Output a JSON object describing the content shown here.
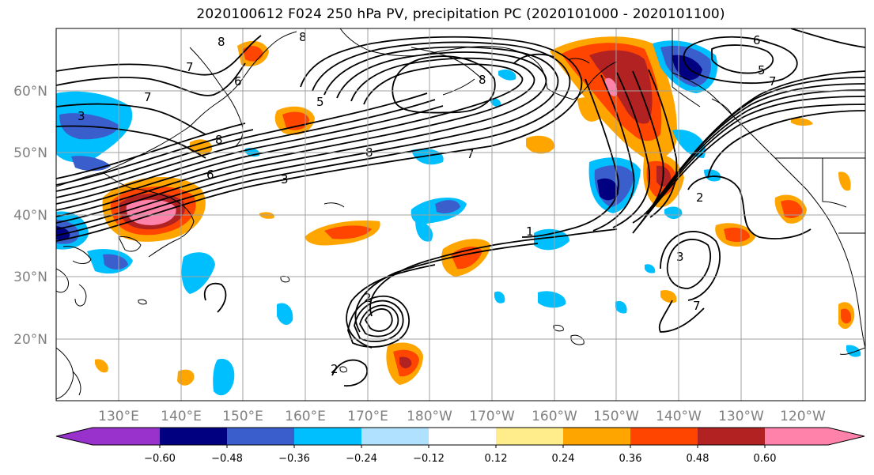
{
  "title": "2020100612 F024 250 hPa PV, precipitation PC (2020101000 - 2020101100)",
  "map": {
    "lat_labels": [
      "60°N",
      "50°N",
      "40°N",
      "30°N",
      "20°N"
    ],
    "lon_labels": [
      "130°E",
      "140°E",
      "150°E",
      "160°E",
      "170°E",
      "180°W",
      "170°W",
      "160°W",
      "150°W",
      "140°W",
      "130°W",
      "120°W"
    ],
    "contour_labels": [
      "3",
      "8",
      "7",
      "6",
      "8",
      "5",
      "8",
      "7",
      "3",
      "6",
      "8",
      "7",
      "8",
      "6",
      "5",
      "7",
      "1",
      "2",
      "2",
      "2",
      "7",
      "3"
    ],
    "colors": {
      "land_outline": "#000000",
      "grid": "#a0a0a0",
      "contour": "#000000"
    }
  },
  "colorbar": {
    "tick_labels": [
      "−0.60",
      "−0.48",
      "−0.36",
      "−0.24",
      "−0.12",
      "0.12",
      "0.24",
      "0.36",
      "0.48",
      "0.60"
    ],
    "colors": [
      "#9932cc",
      "#000080",
      "#3a5fcd",
      "#00bfff",
      "#b0e2ff",
      "#ffffff",
      "#ffec8b",
      "#ffa500",
      "#ff4500",
      "#b22222",
      "#ff82ab"
    ]
  }
}
